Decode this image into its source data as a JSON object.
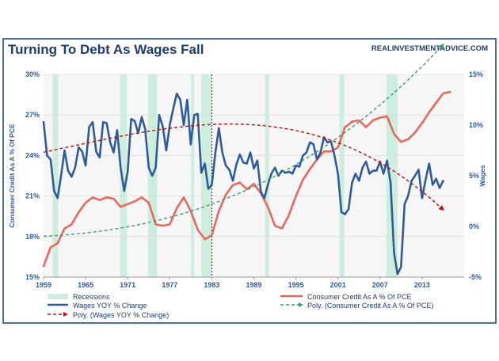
{
  "chart_data": {
    "type": "line",
    "title": "Turning To Debt As Wages Fall",
    "source": "REALINVESTMENTADVICE.COM",
    "ylabel_left": "Consumer Credit As A % Of PCE",
    "ylabel_right": "Wages",
    "left_axis": {
      "min": 15,
      "max": 30,
      "ticks": [
        15,
        18,
        21,
        24,
        27,
        30
      ],
      "tick_labels": [
        "15%",
        "18%",
        "21%",
        "24%",
        "27%",
        "30%"
      ]
    },
    "right_axis": {
      "min": -5,
      "max": 15,
      "ticks": [
        -5,
        0,
        5,
        10,
        15
      ],
      "tick_labels": [
        "-5%",
        "0%",
        "5%",
        "10%",
        "15%"
      ]
    },
    "x_axis": {
      "min": 1959,
      "max": 2019,
      "ticks": [
        1959,
        1965,
        1971,
        1977,
        1983,
        1989,
        1995,
        2001,
        2007,
        2013
      ],
      "tick_labels": [
        "1959",
        "1965",
        "1971",
        "1977",
        "1983",
        "1989",
        "1995",
        "2001",
        "2007",
        "2013"
      ]
    },
    "marker_year": 1983,
    "recessions": [
      [
        1960.3,
        1961.1
      ],
      [
        1969.9,
        1970.9
      ],
      [
        1973.9,
        1975.2
      ],
      [
        1980.0,
        1980.5
      ],
      [
        1981.5,
        1982.9
      ],
      [
        1990.6,
        1991.2
      ],
      [
        2001.2,
        2001.9
      ],
      [
        2007.9,
        2009.5
      ]
    ],
    "series": [
      {
        "name": "Consumer Credit As A % Of PCE",
        "axis": "left",
        "color": "#e8685e",
        "x": [
          1959,
          1960,
          1961,
          1962,
          1963,
          1964,
          1965,
          1966,
          1967,
          1968,
          1969,
          1970,
          1971,
          1972,
          1973,
          1974,
          1975,
          1976,
          1977,
          1978,
          1979,
          1980,
          1981,
          1982,
          1983,
          1984,
          1985,
          1986,
          1987,
          1988,
          1989,
          1990,
          1991,
          1992,
          1993,
          1994,
          1995,
          1996,
          1997,
          1998,
          1999,
          2000,
          2001,
          2002,
          2003,
          2004,
          2005,
          2006,
          2007,
          2008,
          2009,
          2010,
          2011,
          2012,
          2013,
          2014,
          2015,
          2016,
          2017
        ],
        "values": [
          15.8,
          17.2,
          17.5,
          18.6,
          18.9,
          19.8,
          20.5,
          20.9,
          20.7,
          20.9,
          20.8,
          20.2,
          20.4,
          20.6,
          20.9,
          20.5,
          18.9,
          18.8,
          18.9,
          20.1,
          20.9,
          19.9,
          18.5,
          17.8,
          18.1,
          19.9,
          21.1,
          21.8,
          22.0,
          21.5,
          21.9,
          21.2,
          20.2,
          18.8,
          18.6,
          19.6,
          21.0,
          22.2,
          23.0,
          23.7,
          24.3,
          24.3,
          24.6,
          26.1,
          26.5,
          26.6,
          26.1,
          26.6,
          26.8,
          26.9,
          25.6,
          25.0,
          25.2,
          25.7,
          26.4,
          27.2,
          27.9,
          28.6,
          28.7
        ]
      },
      {
        "name": "Wages YOY % Change",
        "axis": "right",
        "color": "#2f5b99",
        "x": [
          1959,
          1959.5,
          1960,
          1960.5,
          1961,
          1961.5,
          1962,
          1962.5,
          1963,
          1963.5,
          1964,
          1964.5,
          1965,
          1965.5,
          1966,
          1966.5,
          1967,
          1967.5,
          1968,
          1968.5,
          1969,
          1969.5,
          1970,
          1970.5,
          1971,
          1971.5,
          1972,
          1972.5,
          1973,
          1973.5,
          1974,
          1974.5,
          1975,
          1975.5,
          1976,
          1976.5,
          1977,
          1977.5,
          1978,
          1978.5,
          1979,
          1979.5,
          1980,
          1980.5,
          1981,
          1981.5,
          1982,
          1982.5,
          1983,
          1983.5,
          1984,
          1984.5,
          1985,
          1985.5,
          1986,
          1986.5,
          1987,
          1987.5,
          1988,
          1988.5,
          1989,
          1989.5,
          1990,
          1990.5,
          1991,
          1991.5,
          1992,
          1992.5,
          1993,
          1993.5,
          1994,
          1994.5,
          1995,
          1995.5,
          1996,
          1996.5,
          1997,
          1997.5,
          1998,
          1998.5,
          1999,
          1999.5,
          2000,
          2000.5,
          2001,
          2001.5,
          2002,
          2002.5,
          2003,
          2003.5,
          2004,
          2004.5,
          2005,
          2005.5,
          2006,
          2006.5,
          2007,
          2007.5,
          2008,
          2008.5,
          2009,
          2009.5,
          2010,
          2010.5,
          2011,
          2011.5,
          2012,
          2012.5,
          2013,
          2013.5,
          2014,
          2014.5,
          2015,
          2015.5,
          2016
        ],
        "values": [
          10.3,
          7.0,
          6.6,
          3.5,
          2.8,
          5.0,
          7.5,
          5.5,
          4.9,
          5.8,
          7.8,
          7.4,
          6.0,
          9.8,
          10.3,
          7.4,
          6.8,
          10.3,
          10.2,
          8.3,
          7.3,
          9.5,
          5.8,
          3.5,
          5.4,
          10.6,
          10.4,
          9.2,
          10.8,
          9.6,
          5.8,
          5.0,
          5.8,
          11.0,
          9.9,
          7.5,
          10.0,
          11.6,
          13.1,
          12.5,
          10.0,
          12.5,
          8.1,
          11.0,
          11.1,
          5.3,
          6.2,
          3.7,
          4.1,
          7.2,
          9.7,
          7.3,
          6.0,
          5.6,
          4.5,
          6.1,
          7.1,
          6.3,
          6.2,
          7.3,
          5.7,
          6.5,
          3.4,
          2.8,
          4.1,
          5.2,
          5.8,
          5.0,
          5.5,
          5.3,
          5.4,
          5.2,
          6.0,
          5.9,
          7.0,
          7.3,
          8.3,
          8.1,
          6.6,
          7.3,
          8.8,
          8.3,
          8.4,
          7.0,
          5.2,
          1.4,
          1.2,
          1.7,
          4.3,
          5.2,
          4.5,
          5.8,
          6.4,
          5.2,
          5.5,
          5.5,
          6.4,
          5.2,
          6.5,
          4.3,
          -2.6,
          -4.7,
          -4.0,
          2.2,
          3.0,
          4.5,
          5.0,
          5.6,
          2.8,
          4.6,
          6.2,
          4.1,
          4.7,
          3.8,
          4.5
        ]
      },
      {
        "name": "Poly. (Consumer Credit As A % Of PCE)",
        "axis": "left",
        "color": "#3c9a76",
        "style": "dashed",
        "poly": [
          2.5e-05,
          0.0025,
          0.025,
          18.02
        ]
      },
      {
        "name": "Poly. (Wages YOY % Change)",
        "axis": "right",
        "color": "#c0100f",
        "style": "dashed",
        "poly": [
          -9.1e-05,
          0.0009,
          0.145,
          7.32
        ]
      }
    ],
    "legend": [
      "Recessions",
      "Consumer Credit As A % Of PCE",
      "Wages YOY % Change",
      "Poly. (Consumer Credit As A % Of PCE)",
      "Poly. (Wages YOY % Change)"
    ],
    "colors": {
      "frame": "#4a6f9a",
      "plot_bg": "#f6f6f6",
      "recession": "#cdeedd",
      "title": "#1f3d6b",
      "axis_text": "#2f5b99",
      "marker": "#222222"
    }
  }
}
